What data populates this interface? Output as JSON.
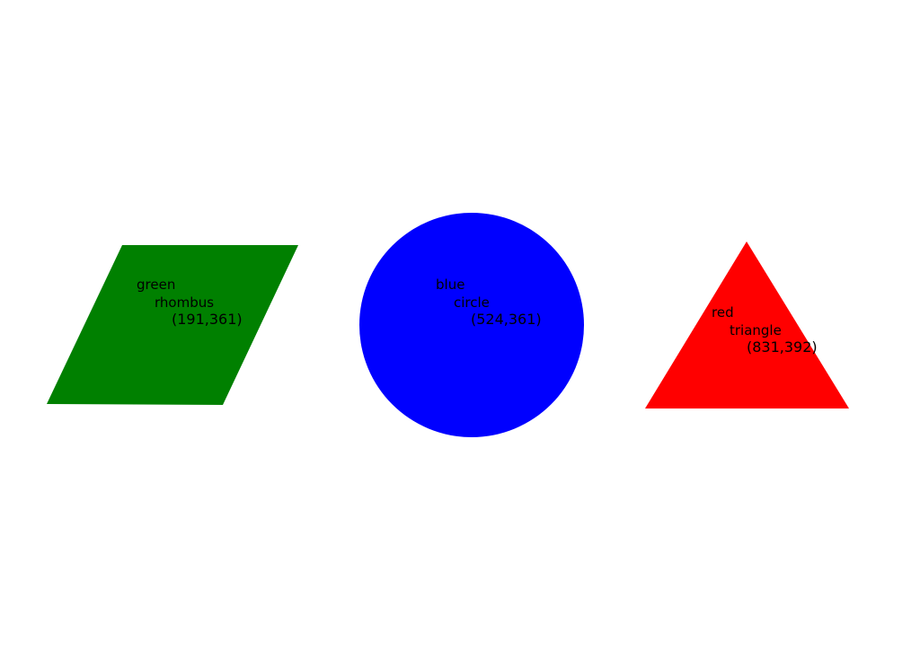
{
  "shapes": [
    {
      "id": "rhombus",
      "color": "#008000",
      "lines": [
        "green",
        "rhombus",
        "(191,361)"
      ]
    },
    {
      "id": "circle",
      "color": "#0000ff",
      "lines": [
        "blue",
        "circle",
        "(524,361)"
      ]
    },
    {
      "id": "triangle",
      "color": "#ff0000",
      "lines": [
        "red",
        "triangle",
        "(831,392)"
      ]
    }
  ]
}
